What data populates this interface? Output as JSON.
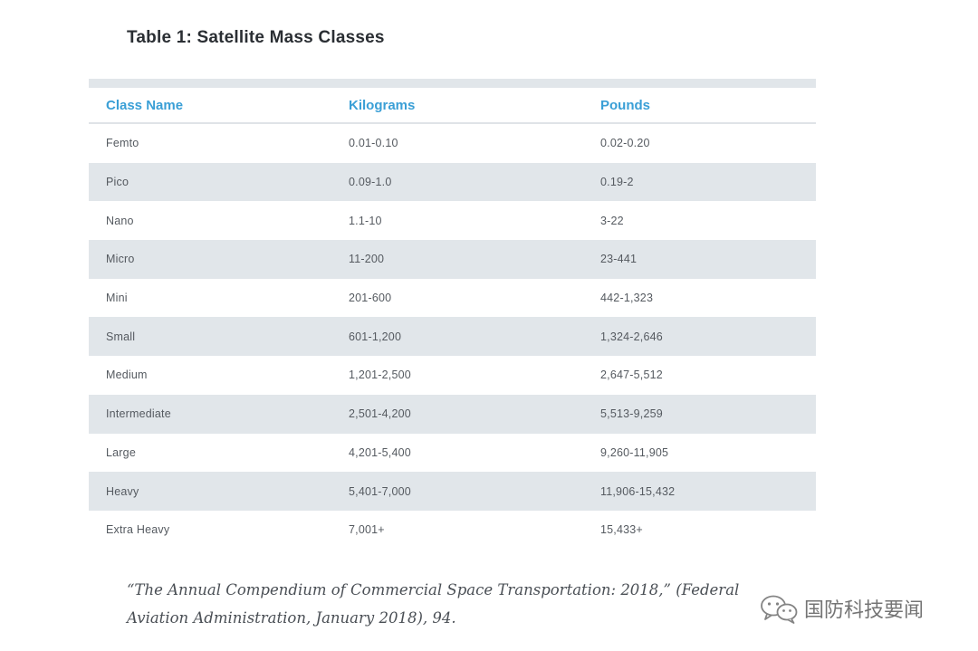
{
  "title": "Table 1: Satellite Mass Classes",
  "table": {
    "headers": [
      "Class Name",
      "Kilograms",
      "Pounds"
    ],
    "rows": [
      [
        "Femto",
        "0.01-0.10",
        "0.02-0.20"
      ],
      [
        "Pico",
        "0.09-1.0",
        "0.19-2"
      ],
      [
        "Nano",
        "1.1-10",
        "3-22"
      ],
      [
        "Micro",
        "11-200",
        "23-441"
      ],
      [
        "Mini",
        "201-600",
        "442-1,323"
      ],
      [
        "Small",
        "601-1,200",
        "1,324-2,646"
      ],
      [
        "Medium",
        "1,201-2,500",
        "2,647-5,512"
      ],
      [
        "Intermediate",
        "2,501-4,200",
        "5,513-9,259"
      ],
      [
        "Large",
        "4,201-5,400",
        "9,260-11,905"
      ],
      [
        "Heavy",
        "5,401-7,000",
        "11,906-15,432"
      ],
      [
        "Extra Heavy",
        "7,001+",
        "15,433+"
      ]
    ]
  },
  "caption": "“The Annual Compendium of Commercial Space Transportation: 2018,” (Federal Aviation Administration, January 2018), 94.",
  "watermark": {
    "icon": "wechat-icon",
    "text": "国防科技要闻"
  },
  "colors": {
    "header_text": "#3a9fd6",
    "row_shade": "#e1e6ea",
    "title_text": "#2a2e33"
  }
}
